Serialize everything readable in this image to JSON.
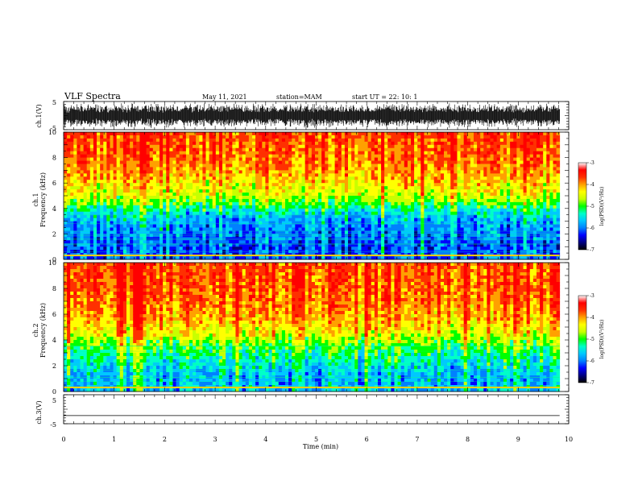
{
  "header": {
    "title": "VLF Spectra",
    "date": "May 11, 2021",
    "station": "station=MAM",
    "start": "start  UT =   22: 10: 1"
  },
  "chart_data": [
    {
      "type": "line",
      "id": "ch1-waveform",
      "ylabel": "ch.1(V)",
      "ylim": [
        -5,
        5
      ],
      "yticks": [
        "5",
        "-5"
      ],
      "xlim": [
        0,
        10
      ],
      "data_extent_min": 9.82,
      "description_of_signal": "dense noisy waveform"
    },
    {
      "type": "heatmap",
      "id": "ch1-spectrogram",
      "ylabel_line1": "ch.1",
      "ylabel_line2": "Frequency (kHz)",
      "ylim": [
        0,
        10
      ],
      "yticks": [
        "0",
        "2",
        "4",
        "6",
        "8",
        "10"
      ],
      "xlim": [
        0,
        10
      ],
      "data_extent_min": 9.82,
      "profile_khz_level": [
        [
          0,
          -6.3
        ],
        [
          1,
          -6.4
        ],
        [
          2,
          -6.2
        ],
        [
          3,
          -6.0
        ],
        [
          3.7,
          -5.6
        ],
        [
          4.3,
          -5.0
        ],
        [
          5,
          -4.5
        ],
        [
          6,
          -4.1
        ],
        [
          7,
          -3.8
        ],
        [
          8,
          -3.6
        ],
        [
          10,
          -3.4
        ]
      ],
      "colorbar": {
        "label": "log(PSD)(V²/Hz)",
        "ticks": [
          "-3",
          "-4",
          "-5",
          "-6",
          "-7"
        ],
        "range": [
          -7,
          -3
        ]
      }
    },
    {
      "type": "heatmap",
      "id": "ch2-spectrogram",
      "ylabel_line1": "ch.2",
      "ylabel_line2": "Frequency (kHz)",
      "ylim": [
        0,
        10
      ],
      "yticks": [
        "0",
        "2",
        "4",
        "6",
        "8",
        "10"
      ],
      "xlim": [
        0,
        10
      ],
      "data_extent_min": 9.82,
      "profile_khz_level": [
        [
          0,
          -5.8
        ],
        [
          1,
          -5.9
        ],
        [
          2,
          -5.6
        ],
        [
          3,
          -5.2
        ],
        [
          3.8,
          -4.8
        ],
        [
          4.5,
          -4.3
        ],
        [
          5.5,
          -3.9
        ],
        [
          7,
          -3.6
        ],
        [
          10,
          -3.4
        ]
      ],
      "colorbar": {
        "label": "log(PSD)(V²/Hz)",
        "ticks": [
          "-3",
          "-4",
          "-5",
          "-6",
          "-7"
        ],
        "range": [
          -7,
          -3
        ]
      }
    },
    {
      "type": "line",
      "id": "ch3-waveform",
      "ylabel": "ch.3(V)",
      "ylim": [
        -5,
        5
      ],
      "yticks": [
        "5",
        "-5"
      ],
      "xlim": [
        0,
        10
      ],
      "data_extent_min": 9.82,
      "flat_value": -2.2
    }
  ],
  "x_axis": {
    "label": "Time  (min)",
    "ticks": [
      "0",
      "1",
      "2",
      "3",
      "4",
      "5",
      "6",
      "7",
      "8",
      "9",
      "10"
    ]
  },
  "colors": {
    "scale": [
      "#000080",
      "#0000ff",
      "#0080ff",
      "#00c8ff",
      "#00ffc8",
      "#00ff00",
      "#c8ff00",
      "#ffff00",
      "#ffa000",
      "#ff3000",
      "#ff0000"
    ]
  }
}
